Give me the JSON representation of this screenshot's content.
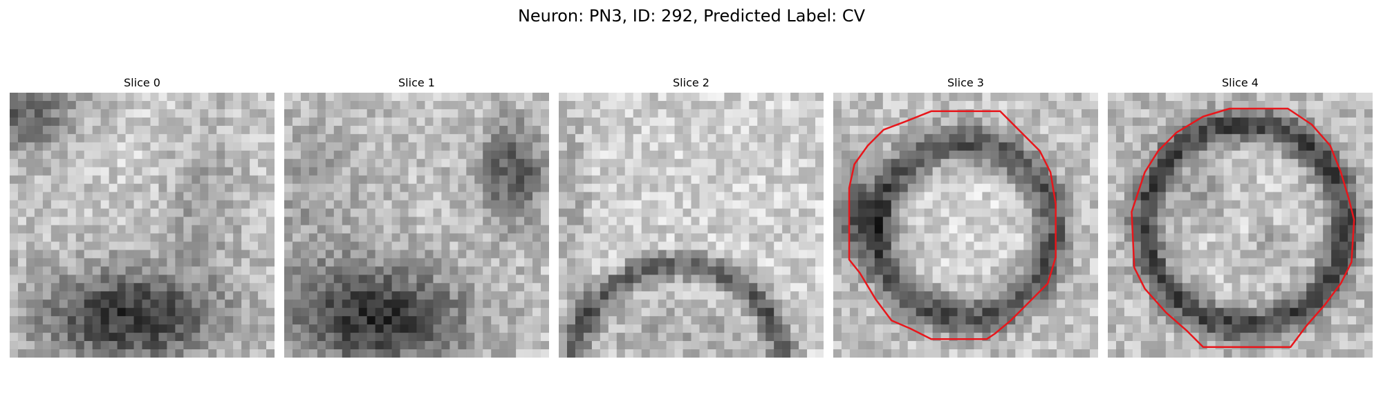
{
  "figure": {
    "title": "Neuron: PN3, ID: 292, Predicted Label: CV"
  },
  "slices": [
    {
      "label": "Slice 0",
      "has_contour": false
    },
    {
      "label": "Slice 1",
      "has_contour": false
    },
    {
      "label": "Slice 2",
      "has_contour": false
    },
    {
      "label": "Slice 3",
      "has_contour": true
    },
    {
      "label": "Slice 4",
      "has_contour": true
    }
  ],
  "style": {
    "contour_color": "#e8161b",
    "colormap": "gray"
  }
}
